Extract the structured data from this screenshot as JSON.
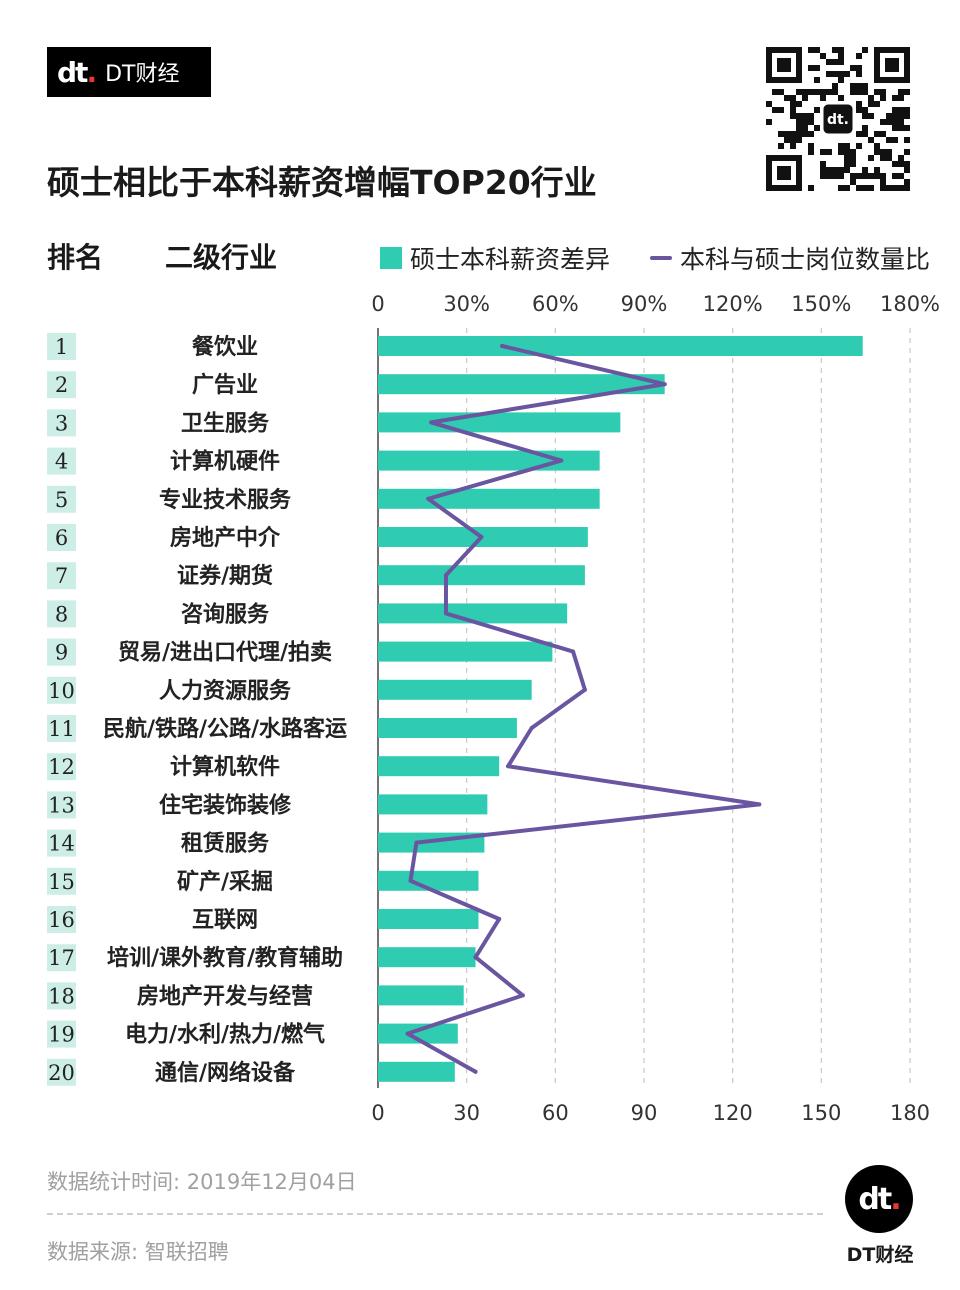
{
  "brand": {
    "logo": "dt.",
    "name": "DT财经"
  },
  "qr": {
    "center_label": "dt."
  },
  "title": "硕士相比于本科薪资增幅TOP20行业",
  "headers": {
    "rank": "排名",
    "industry": "二级行业"
  },
  "legend": {
    "bar_label": "硕士本科薪资差异",
    "line_label": "本科与硕士岗位数量比"
  },
  "colors": {
    "bar": "#2fccb2",
    "line": "#6a55a0",
    "rank_bg": "#cdeee6"
  },
  "chart_data": {
    "type": "bar",
    "orientation": "horizontal",
    "title": "硕士相比于本科薪资增幅TOP20行业",
    "ranks": [
      "1",
      "2",
      "3",
      "4",
      "5",
      "6",
      "7",
      "8",
      "9",
      "10",
      "11",
      "12",
      "13",
      "14",
      "15",
      "16",
      "17",
      "18",
      "19",
      "20"
    ],
    "categories": [
      "餐饮业",
      "广告业",
      "卫生服务",
      "计算机硬件",
      "专业技术服务",
      "房地产中介",
      "证券/期货",
      "咨询服务",
      "贸易/进出口代理/拍卖",
      "人力资源服务",
      "民航/铁路/公路/水路客运",
      "计算机软件",
      "住宅装饰装修",
      "租赁服务",
      "矿产/采掘",
      "互联网",
      "培训/课外教育/教育辅助",
      "房地产开发与经营",
      "电力/水利/热力/燃气",
      "通信/网络设备"
    ],
    "series": [
      {
        "name": "硕士本科薪资差异",
        "kind": "bar",
        "unit": "%",
        "values": [
          164,
          97,
          82,
          75,
          75,
          71,
          70,
          64,
          59,
          52,
          47,
          41,
          37,
          36,
          34,
          34,
          33,
          29,
          27,
          26
        ]
      },
      {
        "name": "本科与硕士岗位数量比",
        "kind": "line",
        "values": [
          42,
          97,
          18,
          62,
          17,
          35,
          23,
          23,
          66,
          70,
          52,
          44,
          129,
          13,
          11,
          41,
          33,
          49,
          10,
          33
        ]
      }
    ],
    "top_axis": {
      "min": 0,
      "max": 180,
      "ticks": [
        "0",
        "30%",
        "60%",
        "90%",
        "120%",
        "150%",
        "180%"
      ]
    },
    "bottom_axis": {
      "min": 0,
      "max": 180,
      "ticks": [
        "0",
        "30",
        "60",
        "90",
        "120",
        "150",
        "180"
      ]
    },
    "grid": true
  },
  "footer": {
    "date": "数据统计时间: 2019年12月04日",
    "source": "数据来源: 智联招聘",
    "logo": "dt.",
    "logo_text": "DT财经"
  }
}
